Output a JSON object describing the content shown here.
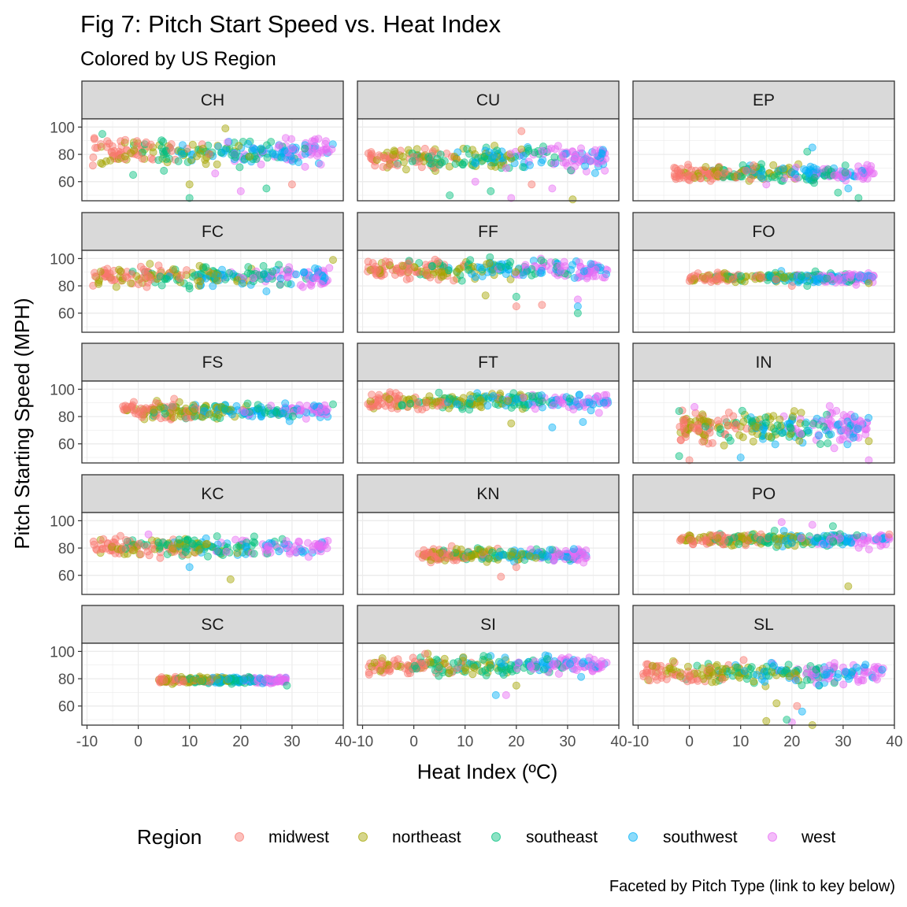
{
  "chart_data": {
    "type": "scatter",
    "title": "Fig 7: Pitch Start Speed vs. Heat Index",
    "subtitle": "Colored by US Region",
    "caption": "Faceted by Pitch Type (link to key below)",
    "xlabel": "Heat Index (ºC)",
    "ylabel": "Pitch Starting Speed (MPH)",
    "xlim": [
      -11,
      40
    ],
    "ylim": [
      46,
      106
    ],
    "x_ticks": [
      "-10",
      "0",
      "10",
      "20",
      "30",
      "40"
    ],
    "y_ticks": [
      "60",
      "80",
      "100"
    ],
    "legend": {
      "title": "Region",
      "position": "bottom"
    },
    "series": [
      {
        "name": "midwest",
        "color": "#F8766D"
      },
      {
        "name": "northeast",
        "color": "#A3A500"
      },
      {
        "name": "southeast",
        "color": "#00BF7D"
      },
      {
        "name": "southwest",
        "color": "#00B0F6"
      },
      {
        "name": "west",
        "color": "#E76BF3"
      }
    ],
    "facets": [
      {
        "label": "CH",
        "speed_center": 82,
        "speed_spread": 8,
        "heat_range": [
          -9,
          38
        ],
        "outliers": [
          [
            -7,
            95
          ],
          [
            17,
            99
          ],
          [
            -1,
            65
          ],
          [
            10,
            58
          ],
          [
            20,
            53
          ],
          [
            10,
            48
          ],
          [
            25,
            55
          ],
          [
            30,
            58
          ],
          [
            5,
            68
          ],
          [
            15,
            66
          ]
        ]
      },
      {
        "label": "CU",
        "speed_center": 77,
        "speed_spread": 8,
        "heat_range": [
          -9,
          38
        ],
        "outliers": [
          [
            21,
            97
          ],
          [
            7,
            50
          ],
          [
            15,
            53
          ],
          [
            19,
            48
          ],
          [
            27,
            55
          ],
          [
            31,
            47
          ],
          [
            23,
            58
          ],
          [
            12,
            60
          ]
        ]
      },
      {
        "label": "EP",
        "speed_center": 66,
        "speed_spread": 5,
        "heat_range": [
          -3,
          36
        ],
        "outliers": [
          [
            23,
            82
          ],
          [
            24,
            85
          ],
          [
            29,
            52
          ],
          [
            31,
            55
          ],
          [
            33,
            48
          ],
          [
            15,
            58
          ],
          [
            12,
            62
          ]
        ]
      },
      {
        "label": "FC",
        "speed_center": 87,
        "speed_spread": 6,
        "heat_range": [
          -9,
          38
        ],
        "outliers": [
          [
            38,
            99
          ],
          [
            10,
            78
          ],
          [
            25,
            76
          ]
        ]
      },
      {
        "label": "FF",
        "speed_center": 92,
        "speed_spread": 6,
        "heat_range": [
          -9,
          38
        ],
        "outliers": [
          [
            20,
            65
          ],
          [
            25,
            66
          ],
          [
            32,
            70
          ],
          [
            32,
            65
          ],
          [
            32,
            60
          ],
          [
            20,
            72
          ],
          [
            14,
            73
          ]
        ]
      },
      {
        "label": "FO",
        "speed_center": 86,
        "speed_spread": 3,
        "heat_range": [
          0,
          36
        ],
        "outliers": [
          [
            35,
            82
          ],
          [
            20,
            80
          ],
          [
            23,
            80
          ]
        ]
      },
      {
        "label": "FS",
        "speed_center": 84,
        "speed_spread": 5,
        "heat_range": [
          -3,
          37
        ],
        "outliers": [
          [
            38,
            89
          ],
          [
            7,
            93
          ]
        ]
      },
      {
        "label": "FT",
        "speed_center": 91,
        "speed_spread": 5,
        "heat_range": [
          -9,
          38
        ],
        "outliers": [
          [
            19,
            75
          ],
          [
            27,
            72
          ],
          [
            33,
            76
          ]
        ]
      },
      {
        "label": "IN",
        "speed_center": 72,
        "speed_spread": 10,
        "heat_range": [
          -2,
          35
        ],
        "outliers": [
          [
            -2,
            51
          ],
          [
            -2,
            84
          ],
          [
            1,
            87
          ],
          [
            0,
            48
          ],
          [
            35,
            48
          ],
          [
            35,
            62
          ],
          [
            10,
            50
          ]
        ]
      },
      {
        "label": "KC",
        "speed_center": 81,
        "speed_spread": 6,
        "heat_range": [
          -9,
          37
        ],
        "outliers": [
          [
            18,
            57
          ],
          [
            10,
            66
          ],
          [
            2,
            90
          ]
        ]
      },
      {
        "label": "KN",
        "speed_center": 75,
        "speed_spread": 4,
        "heat_range": [
          1,
          34
        ],
        "outliers": [
          [
            17,
            59
          ],
          [
            20,
            66
          ]
        ]
      },
      {
        "label": "PO",
        "speed_center": 86,
        "speed_spread": 4,
        "heat_range": [
          -2,
          39
        ],
        "outliers": [
          [
            31,
            52
          ],
          [
            18,
            99
          ],
          [
            39,
            90
          ],
          [
            24,
            97
          ],
          [
            28,
            96
          ]
        ]
      },
      {
        "label": "SC",
        "speed_center": 79,
        "speed_spread": 2,
        "heat_range": [
          4,
          29
        ],
        "outliers": [
          [
            29,
            75
          ]
        ]
      },
      {
        "label": "SI",
        "speed_center": 90,
        "speed_spread": 6,
        "heat_range": [
          -9,
          38
        ],
        "outliers": [
          [
            16,
            68
          ],
          [
            18,
            68
          ],
          [
            20,
            75
          ]
        ]
      },
      {
        "label": "SL",
        "speed_center": 84,
        "speed_spread": 7,
        "heat_range": [
          -9,
          38
        ],
        "outliers": [
          [
            15,
            49
          ],
          [
            20,
            48
          ],
          [
            24,
            46
          ],
          [
            22,
            56
          ],
          [
            21,
            60
          ],
          [
            17,
            62
          ],
          [
            19,
            50
          ]
        ]
      }
    ]
  }
}
